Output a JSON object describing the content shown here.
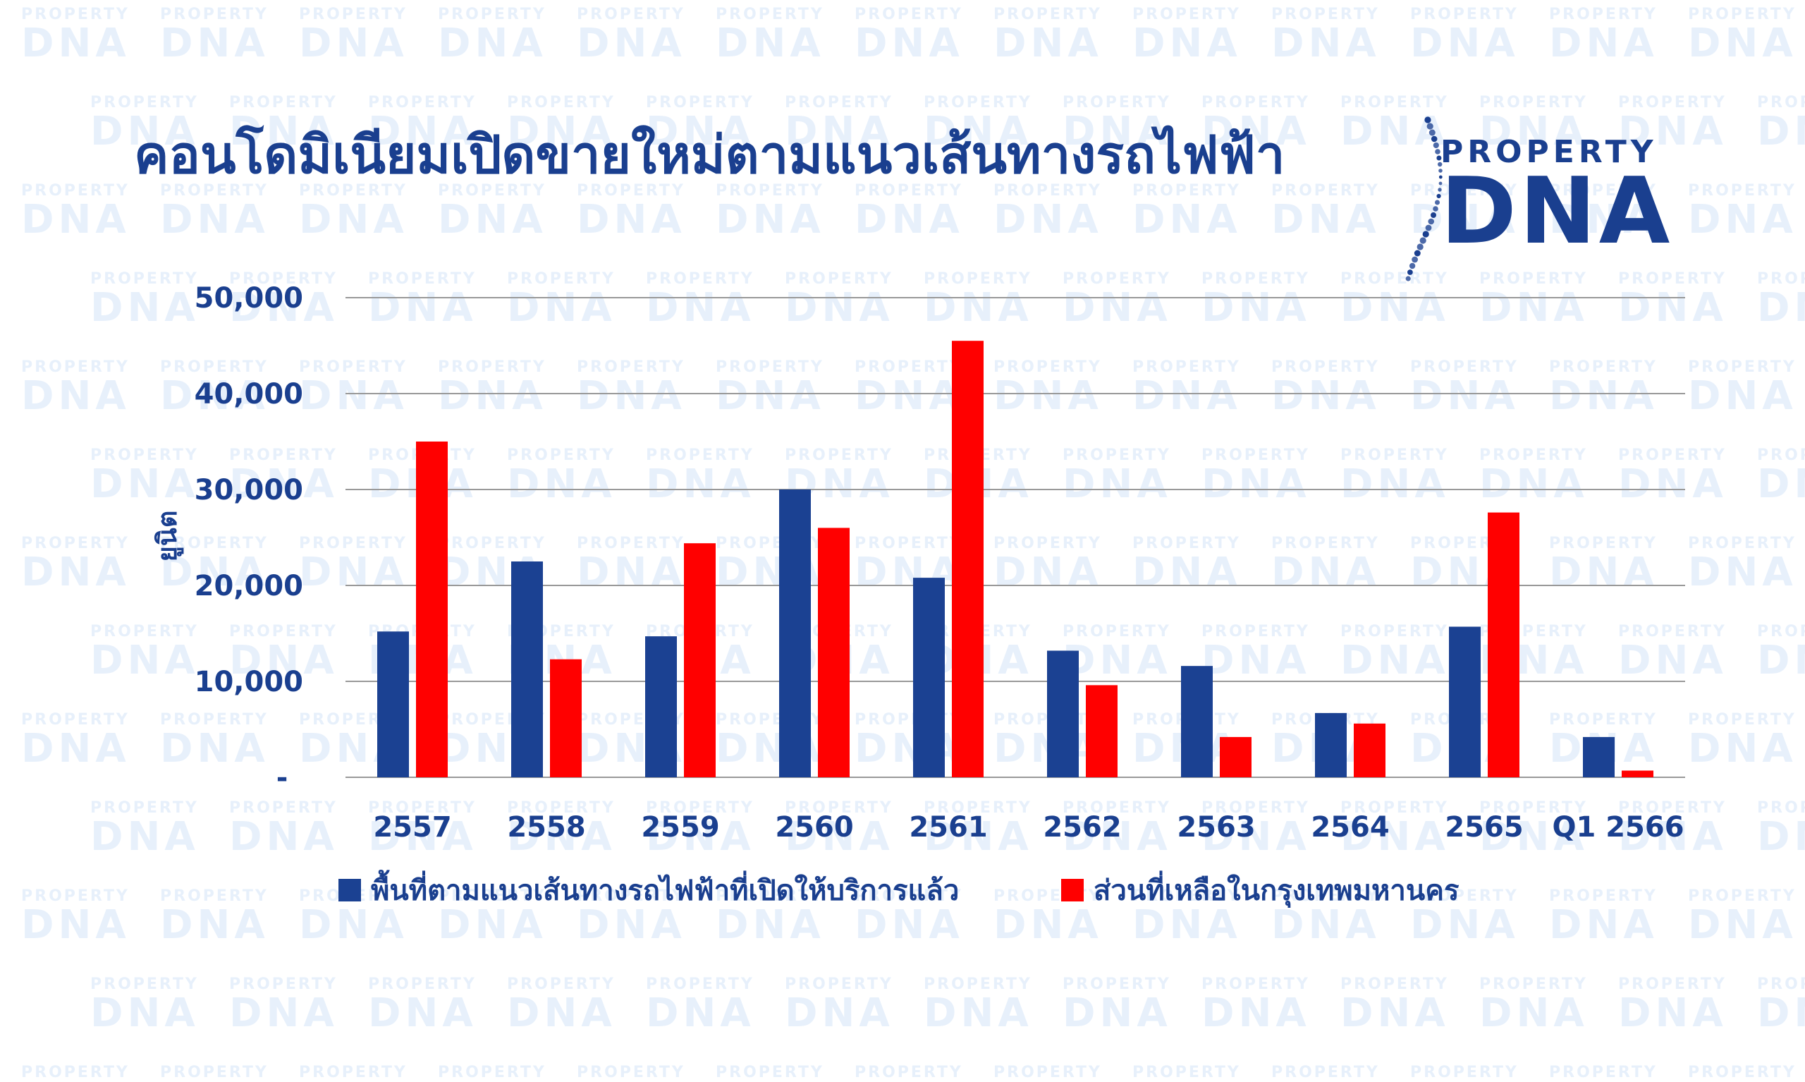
{
  "title": "คอนโดมิเนียมเปิดขายใหม่ตามแนวเส้นทางรถไฟฟ้า",
  "logo": {
    "small": "PROPERTY",
    "big": "DNA"
  },
  "watermark": {
    "small": "PROPERTY",
    "big": "DNA"
  },
  "colors": {
    "series1": "#1b4192",
    "series2": "#ff0000",
    "title": "#1a3f8f",
    "grid": "#999999"
  },
  "chart_data": {
    "type": "bar",
    "categories": [
      "2557",
      "2558",
      "2559",
      "2560",
      "2561",
      "2562",
      "2563",
      "2564",
      "2565",
      "Q1 2566"
    ],
    "series": [
      {
        "name": "พื้นที่ตามแนวเส้นทางรถไฟฟ้าที่เปิดให้บริการแล้ว",
        "values": [
          15200,
          22500,
          14700,
          30000,
          20800,
          13200,
          11600,
          6700,
          15700,
          4200
        ]
      },
      {
        "name": "ส่วนที่เหลือในกรุงเทพมหานคร",
        "values": [
          35000,
          12300,
          24400,
          26000,
          45500,
          9600,
          4200,
          5600,
          27600,
          700
        ]
      }
    ],
    "title": "คอนโดมิเนียมเปิดขายใหม่ตามแนวเส้นทางรถไฟฟ้า",
    "xlabel": "",
    "ylabel": "ยูนิต",
    "ylim": [
      0,
      50000
    ],
    "yticks": [
      0,
      10000,
      20000,
      30000,
      40000,
      50000
    ],
    "ytick_labels": [
      "-",
      "10,000",
      "20,000",
      "30,000",
      "40,000",
      "50,000"
    ],
    "grid": true,
    "legend": "bottom"
  }
}
